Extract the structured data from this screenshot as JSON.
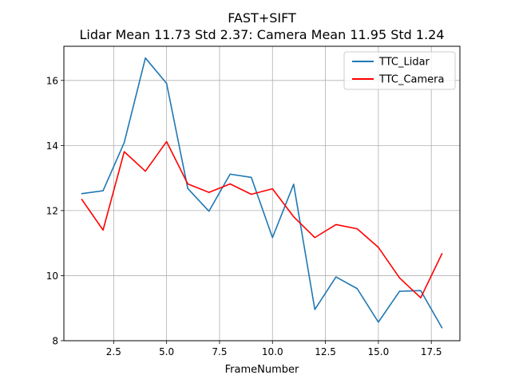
{
  "chart_data": {
    "type": "line",
    "title": "FAST+SIFT",
    "subtitle": "Lidar Mean 11.73 Std 2.37: Camera Mean 11.95 Std 1.24",
    "xlabel": "FrameNumber",
    "ylabel": "",
    "xlim": [
      0.15,
      18.85
    ],
    "ylim": [
      8.0,
      17.05
    ],
    "xticks": [
      2.5,
      5.0,
      7.5,
      10.0,
      12.5,
      15.0,
      17.5
    ],
    "xtick_labels": [
      "2.5",
      "5.0",
      "7.5",
      "10.0",
      "12.5",
      "15.0",
      "17.5"
    ],
    "yticks": [
      8,
      10,
      12,
      14,
      16
    ],
    "ytick_labels": [
      "8",
      "10",
      "12",
      "14",
      "16"
    ],
    "grid": true,
    "legend_position": "top-right",
    "x": [
      1,
      2,
      3,
      4,
      5,
      6,
      7,
      8,
      9,
      10,
      11,
      12,
      13,
      14,
      15,
      16,
      17,
      18
    ],
    "series": [
      {
        "name": "TTC_Lidar",
        "color": "#1f77b4",
        "values": [
          12.52,
          12.61,
          14.09,
          16.69,
          15.91,
          12.68,
          11.98,
          13.12,
          13.02,
          11.17,
          12.81,
          8.96,
          9.96,
          9.6,
          8.57,
          9.52,
          9.54,
          8.4
        ]
      },
      {
        "name": "TTC_Camera",
        "color": "#ff0000",
        "values": [
          12.34,
          11.4,
          13.81,
          13.21,
          14.12,
          12.82,
          12.56,
          12.82,
          12.5,
          12.67,
          11.81,
          11.17,
          11.57,
          11.44,
          10.87,
          9.93,
          9.32,
          10.67
        ]
      }
    ]
  }
}
